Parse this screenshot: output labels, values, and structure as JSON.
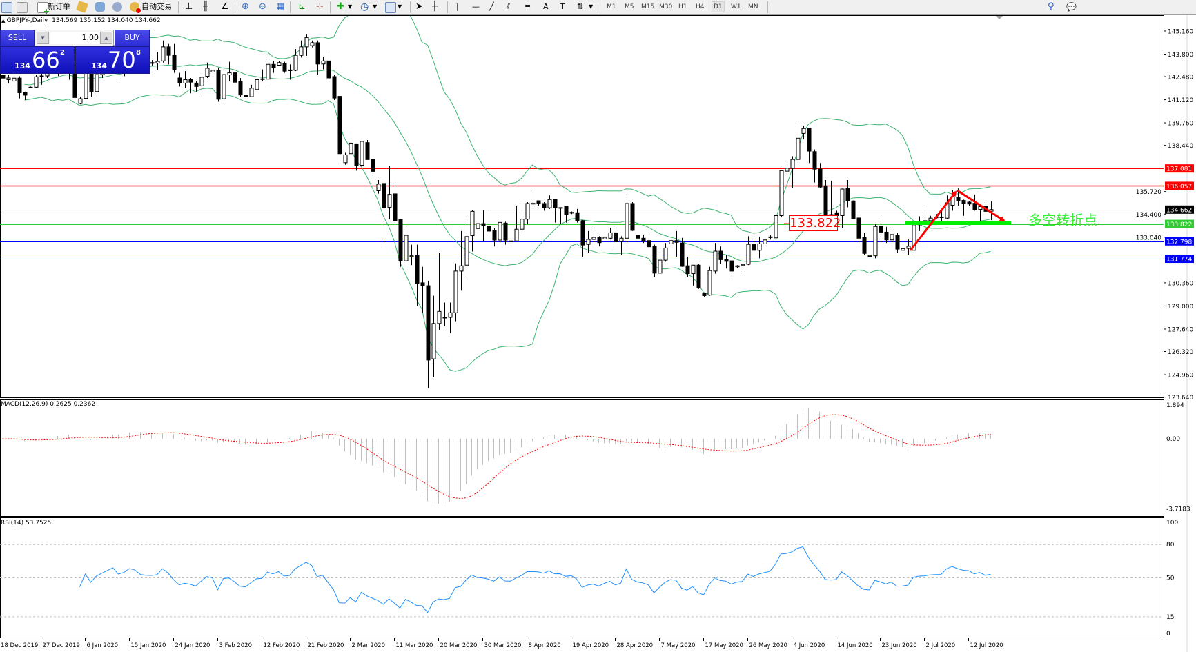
{
  "toolbar": {
    "new_order": "新订单",
    "auto_trading": "自动交易",
    "timeframes": [
      "M1",
      "M5",
      "M15",
      "M30",
      "H1",
      "H4",
      "D1",
      "W1",
      "MN"
    ],
    "active_timeframe": "D1"
  },
  "chart_header": {
    "symbol": "GBPJPY-,Daily",
    "ohlc": "134.569 135.152 134.040 134.662"
  },
  "trade_panel": {
    "sell_label": "SELL",
    "buy_label": "BUY",
    "lot": "1.00",
    "bid": {
      "big": "134",
      "main": "66",
      "small": "2"
    },
    "ask": {
      "big": "134",
      "main": "70",
      "small": "8"
    }
  },
  "annotations": {
    "level_box": "133.822",
    "pivot_text": "多空转折点",
    "arrow_color": "#ff0000",
    "zone_color": "#00ee00"
  },
  "chart_data": {
    "type": "candlestick",
    "symbol": "GBPJPY",
    "timeframe": "Daily",
    "ylim": [
      123.6,
      146.09
    ],
    "colors": {
      "bull_body": "#ffffff",
      "bear_body": "#000000",
      "bollinger": "#3cb371"
    },
    "indicators": {
      "bollinger": {
        "period": 20,
        "deviation": 2
      }
    },
    "price_ticks": [
      "145.160",
      "143.800",
      "142.480",
      "141.120",
      "139.760",
      "138.440",
      "135.720",
      "134.400",
      "133.040",
      "130.360",
      "129.000",
      "127.640",
      "126.320",
      "124.960",
      "123.640"
    ],
    "hlines": [
      {
        "value": 137.081,
        "label": "137.081",
        "color": "#ff0000"
      },
      {
        "value": 136.057,
        "label": "136.057",
        "color": "#ff0000"
      },
      {
        "value": 134.662,
        "label": "134.662",
        "color": "#c0c0c0",
        "label_bg": "#000000"
      },
      {
        "value": 133.822,
        "label": "133.822",
        "color": "#32cd32"
      },
      {
        "value": 132.798,
        "label": "132.798",
        "color": "#0000ff"
      },
      {
        "value": 131.774,
        "label": "131.774",
        "color": "#0000ff"
      }
    ],
    "x_ticks": [
      "18 Dec 2019",
      "27 Dec 2019",
      "6 Jan 2020",
      "15 Jan 2020",
      "24 Jan 2020",
      "3 Feb 2020",
      "12 Feb 2020",
      "21 Feb 2020",
      "2 Mar 2020",
      "11 Mar 2020",
      "20 Mar 2020",
      "30 Mar 2020",
      "8 Apr 2020",
      "19 Apr 2020",
      "28 Apr 2020",
      "7 May 2020",
      "17 May 2020",
      "26 May 2020",
      "4 Jun 2020",
      "14 Jun 2020",
      "23 Jun 2020",
      "2 Jul 2020",
      "12 Jul 2020"
    ],
    "ohlc": [
      [
        142.58,
        142.65,
        141.96,
        142.39
      ],
      [
        142.3,
        142.6,
        142.1,
        142.4
      ],
      [
        142.22,
        142.55,
        142.1,
        142.39
      ],
      [
        142.39,
        142.5,
        141.2,
        141.53
      ],
      [
        141.53,
        141.6,
        141.1,
        141.39
      ],
      [
        141.85,
        141.9,
        141.8,
        141.86
      ],
      [
        141.86,
        142.6,
        141.8,
        142.47
      ],
      [
        142.5,
        142.65,
        142.0,
        142.52
      ],
      [
        142.52,
        143.4,
        142.4,
        143.2
      ],
      [
        143.2,
        143.9,
        143.0,
        143.7
      ],
      [
        143.7,
        143.9,
        142.5,
        143.0
      ],
      [
        143.0,
        144.0,
        142.9,
        143.8
      ],
      [
        143.8,
        144.0,
        142.3,
        142.9
      ],
      [
        142.9,
        143.2,
        141.0,
        141.25
      ],
      [
        140.9,
        141.3,
        140.85,
        141.18
      ],
      [
        141.2,
        143.1,
        141.1,
        142.9
      ],
      [
        142.65,
        142.9,
        141.3,
        141.6
      ],
      [
        141.6,
        143.0,
        141.2,
        142.6
      ],
      [
        142.6,
        143.3,
        142.4,
        143.1
      ],
      [
        143.1,
        143.8,
        142.9,
        143.6
      ],
      [
        143.6,
        144.3,
        143.4,
        144.1
      ],
      [
        144.1,
        144.3,
        142.4,
        143.2
      ],
      [
        143.2,
        143.7,
        142.5,
        143.5
      ],
      [
        143.5,
        144.4,
        143.3,
        144.2
      ],
      [
        144.2,
        144.7,
        143.8,
        144.0
      ],
      [
        144.0,
        144.3,
        143.2,
        143.4
      ],
      [
        143.4,
        143.6,
        143.0,
        143.3
      ],
      [
        143.3,
        143.45,
        143.1,
        143.27
      ],
      [
        143.27,
        143.94,
        142.87,
        143.37
      ],
      [
        143.4,
        144.6,
        143.3,
        144.23
      ],
      [
        144.23,
        144.4,
        143.2,
        143.73
      ],
      [
        143.73,
        144.4,
        142.7,
        142.87
      ],
      [
        142.4,
        142.7,
        141.9,
        142.1
      ],
      [
        142.1,
        142.8,
        141.8,
        142.3
      ],
      [
        142.3,
        142.4,
        141.5,
        142.15
      ],
      [
        142.1,
        142.2,
        141.6,
        141.9
      ],
      [
        141.94,
        142.7,
        141.2,
        142.44
      ],
      [
        142.5,
        143.3,
        142.4,
        142.97
      ],
      [
        142.75,
        143.0,
        142.6,
        142.85
      ],
      [
        142.85,
        143.0,
        141.0,
        141.15
      ],
      [
        141.18,
        142.85,
        140.95,
        142.6
      ],
      [
        142.58,
        143.35,
        142.2,
        142.7
      ],
      [
        142.7,
        142.8,
        142.0,
        142.15
      ],
      [
        142.2,
        142.4,
        141.3,
        141.4
      ],
      [
        141.4,
        141.5,
        141.25,
        141.3
      ],
      [
        141.3,
        142.0,
        141.3,
        141.8
      ],
      [
        141.72,
        142.5,
        141.7,
        142.3
      ],
      [
        142.33,
        142.9,
        142.2,
        142.35
      ],
      [
        142.33,
        143.5,
        142.1,
        143.2
      ],
      [
        143.2,
        143.4,
        142.7,
        143.0
      ],
      [
        143.15,
        143.4,
        143.1,
        143.3
      ],
      [
        143.25,
        143.35,
        142.7,
        142.8
      ],
      [
        142.85,
        143.2,
        142.3,
        142.87
      ],
      [
        142.85,
        144.1,
        142.8,
        143.73
      ],
      [
        143.73,
        144.6,
        143.6,
        144.23
      ],
      [
        144.23,
        144.95,
        143.7,
        144.77
      ],
      [
        144.3,
        144.6,
        144.2,
        144.47
      ],
      [
        144.47,
        144.6,
        142.6,
        143.22
      ],
      [
        143.22,
        143.65,
        142.9,
        143.4
      ],
      [
        143.4,
        143.75,
        142.2,
        142.4
      ],
      [
        142.48,
        142.6,
        141.1,
        141.22
      ],
      [
        141.32,
        141.35,
        137.5,
        137.95
      ],
      [
        137.42,
        138.0,
        137.3,
        137.88
      ],
      [
        137.95,
        139.2,
        137.2,
        138.57
      ],
      [
        138.53,
        138.55,
        136.95,
        137.27
      ],
      [
        137.27,
        138.7,
        137.2,
        138.67
      ],
      [
        138.6,
        138.75,
        137.6,
        137.6
      ],
      [
        137.6,
        137.8,
        136.45,
        136.91
      ],
      [
        135.77,
        136.4,
        135.6,
        136.16
      ],
      [
        136.2,
        136.35,
        132.6,
        134.77
      ],
      [
        134.8,
        137.25,
        134.1,
        135.56
      ],
      [
        135.59,
        136.6,
        133.8,
        134.0
      ],
      [
        134.08,
        134.1,
        131.3,
        131.65
      ],
      [
        131.65,
        133.4,
        131.3,
        133.15
      ],
      [
        131.9,
        132.6,
        131.4,
        131.95
      ],
      [
        132.0,
        132.6,
        129.0,
        130.33
      ],
      [
        130.36,
        131.3,
        128.6,
        130.19
      ],
      [
        130.19,
        130.45,
        124.17,
        125.82
      ],
      [
        125.89,
        129.6,
        124.8,
        127.97
      ],
      [
        127.97,
        132.1,
        127.6,
        128.68
      ],
      [
        128.3,
        129.2,
        127.8,
        128.33
      ],
      [
        128.33,
        129.2,
        127.4,
        128.6
      ],
      [
        128.6,
        131.5,
        128.1,
        131.05
      ],
      [
        131.05,
        133.4,
        129.9,
        131.36
      ],
      [
        131.4,
        134.2,
        130.7,
        133.08
      ],
      [
        133.13,
        134.65,
        132.2,
        134.56
      ],
      [
        133.55,
        134.0,
        133.3,
        133.84
      ],
      [
        133.84,
        134.65,
        132.8,
        133.7
      ],
      [
        133.7,
        134.65,
        133.2,
        133.4
      ],
      [
        133.44,
        133.6,
        132.5,
        132.87
      ],
      [
        132.87,
        134.1,
        132.6,
        133.91
      ],
      [
        133.87,
        133.95,
        132.6,
        132.87
      ],
      [
        132.8,
        132.9,
        132.7,
        132.82
      ],
      [
        132.82,
        134.9,
        132.8,
        133.51
      ],
      [
        133.51,
        135.05,
        133.3,
        134.1
      ],
      [
        134.1,
        135.1,
        133.8,
        135.02
      ],
      [
        135.0,
        135.8,
        134.7,
        135.03
      ],
      [
        135.18,
        135.2,
        134.9,
        135.0
      ],
      [
        135.02,
        135.1,
        134.6,
        134.77
      ],
      [
        134.77,
        135.5,
        134.7,
        135.25
      ],
      [
        135.25,
        135.3,
        133.9,
        134.77
      ],
      [
        134.77,
        134.8,
        133.8,
        134.78
      ],
      [
        134.84,
        134.9,
        133.9,
        134.38
      ],
      [
        134.48,
        134.55,
        134.4,
        134.5
      ],
      [
        134.48,
        134.7,
        133.9,
        134.01
      ],
      [
        134.01,
        134.05,
        131.9,
        132.58
      ],
      [
        132.62,
        133.4,
        132.1,
        132.91
      ],
      [
        132.91,
        133.6,
        132.4,
        133.03
      ],
      [
        133.05,
        133.1,
        132.5,
        132.72
      ],
      [
        132.94,
        133.1,
        132.9,
        133.03
      ],
      [
        132.98,
        133.6,
        132.9,
        133.3
      ],
      [
        133.3,
        133.6,
        132.6,
        132.77
      ],
      [
        132.8,
        133.1,
        132.0,
        132.98
      ],
      [
        132.98,
        135.5,
        132.7,
        135.02
      ],
      [
        135.02,
        135.1,
        133.4,
        133.44
      ],
      [
        133.15,
        133.3,
        132.9,
        132.98
      ],
      [
        132.98,
        133.2,
        132.7,
        132.84
      ],
      [
        132.84,
        133.1,
        132.45,
        132.48
      ],
      [
        132.51,
        132.6,
        130.7,
        130.93
      ],
      [
        130.93,
        132.1,
        130.8,
        131.69
      ],
      [
        131.69,
        132.7,
        131.6,
        132.41
      ],
      [
        132.65,
        132.9,
        132.6,
        132.84
      ],
      [
        132.84,
        133.4,
        131.9,
        132.74
      ],
      [
        132.7,
        133.0,
        131.3,
        131.33
      ],
      [
        131.36,
        131.9,
        130.7,
        130.9
      ],
      [
        130.9,
        131.4,
        130.2,
        131.4
      ],
      [
        131.4,
        131.45,
        130.0,
        130.05
      ],
      [
        129.76,
        129.8,
        129.55,
        129.61
      ],
      [
        129.64,
        131.3,
        129.6,
        131.08
      ],
      [
        131.05,
        132.7,
        130.9,
        132.22
      ],
      [
        132.22,
        132.5,
        131.45,
        131.72
      ],
      [
        131.72,
        132.0,
        131.2,
        131.62
      ],
      [
        131.65,
        131.8,
        130.75,
        131.05
      ],
      [
        131.3,
        131.4,
        131.25,
        131.36
      ],
      [
        131.4,
        131.5,
        131.0,
        131.45
      ],
      [
        131.45,
        133.1,
        131.4,
        132.62
      ],
      [
        132.62,
        133.1,
        131.75,
        132.27
      ],
      [
        132.27,
        133.05,
        131.8,
        132.65
      ],
      [
        132.65,
        133.5,
        131.8,
        132.88
      ],
      [
        133.04,
        133.15,
        132.9,
        133.06
      ],
      [
        133.0,
        134.6,
        132.95,
        134.31
      ],
      [
        134.31,
        137.0,
        134.25,
        136.95
      ],
      [
        136.92,
        137.5,
        136.2,
        137.09
      ],
      [
        137.09,
        137.8,
        135.95,
        137.61
      ],
      [
        137.61,
        139.75,
        137.3,
        138.86
      ],
      [
        139.14,
        139.6,
        138.8,
        139.43
      ],
      [
        139.43,
        139.45,
        137.4,
        138.1
      ],
      [
        138.07,
        138.2,
        136.25,
        137.04
      ],
      [
        137.04,
        137.4,
        135.95,
        135.99
      ],
      [
        136.06,
        136.4,
        133.6,
        134.34
      ],
      [
        134.37,
        136.35,
        133.8,
        134.23
      ],
      [
        134.48,
        134.6,
        133.8,
        134.31
      ],
      [
        134.31,
        135.9,
        133.6,
        135.87
      ],
      [
        135.92,
        136.4,
        134.8,
        135.17
      ],
      [
        135.17,
        135.2,
        134.1,
        134.13
      ],
      [
        134.17,
        134.4,
        132.45,
        132.98
      ],
      [
        133.02,
        133.3,
        132.0,
        132.09
      ],
      [
        131.93,
        132.0,
        131.9,
        131.95
      ],
      [
        131.95,
        133.8,
        131.8,
        133.67
      ],
      [
        133.67,
        134.05,
        132.6,
        133.34
      ],
      [
        133.34,
        133.65,
        132.7,
        132.88
      ],
      [
        132.88,
        133.65,
        132.7,
        133.2
      ],
      [
        133.15,
        133.3,
        132.1,
        132.34
      ],
      [
        132.27,
        132.4,
        132.2,
        132.37
      ],
      [
        132.38,
        132.9,
        132.0,
        132.51
      ],
      [
        132.27,
        134.0,
        132.0,
        133.77
      ],
      [
        133.77,
        134.27,
        133.4,
        133.97
      ],
      [
        133.91,
        134.8,
        133.8,
        134.01
      ],
      [
        134.01,
        134.3,
        133.9,
        134.16
      ],
      [
        134.2,
        134.4,
        134.1,
        134.22
      ],
      [
        134.2,
        134.7,
        133.9,
        134.23
      ],
      [
        134.16,
        135.5,
        134.1,
        135.06
      ],
      [
        134.92,
        135.8,
        134.6,
        135.42
      ],
      [
        135.38,
        135.9,
        134.9,
        135.2
      ],
      [
        135.2,
        135.25,
        134.3,
        135.03
      ],
      [
        135.1,
        135.15,
        134.9,
        134.99
      ],
      [
        135.03,
        135.55,
        134.6,
        134.67
      ],
      [
        134.67,
        134.9,
        134.0,
        134.84
      ],
      [
        134.84,
        135.1,
        134.4,
        134.56
      ],
      [
        134.569,
        135.152,
        134.04,
        134.662
      ]
    ]
  },
  "macd": {
    "label": "MACD(12,26,9) 0.2625 0.2362",
    "ticks": [
      {
        "value": 1.894,
        "label": "1.894"
      },
      {
        "value": 0,
        "label": "0.00"
      },
      {
        "value": -3.7183,
        "label": "-3.7183"
      }
    ],
    "colors": {
      "histogram": "#c0c0c0",
      "signal": "#ff0000"
    }
  },
  "rsi": {
    "label": "RSI(14) 53.7525",
    "ticks": [
      {
        "value": 100,
        "label": "100"
      },
      {
        "value": 80,
        "label": "80"
      },
      {
        "value": 50,
        "label": "50"
      },
      {
        "value": 15,
        "label": "15"
      },
      {
        "value": 0,
        "label": "0"
      }
    ],
    "levels": [
      80,
      50,
      15
    ],
    "colors": {
      "line": "#1e90ff"
    }
  }
}
